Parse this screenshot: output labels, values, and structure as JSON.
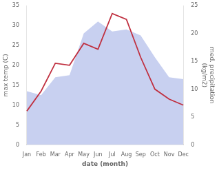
{
  "chart_data": {
    "type": "line",
    "categories": [
      "Jan",
      "Feb",
      "Mar",
      "Apr",
      "May",
      "Jun",
      "Jul",
      "Aug",
      "Sep",
      "Oct",
      "Nov",
      "Dec"
    ],
    "series": [
      {
        "type": "area",
        "color": "#c8d0f0",
        "values": [
          13.5,
          12.5,
          17.0,
          17.5,
          28.0,
          31.0,
          28.5,
          29.0,
          27.5,
          22.0,
          17.0,
          16.5
        ]
      },
      {
        "type": "line",
        "color": "#c03040",
        "values": [
          8.5,
          13.5,
          20.5,
          20.0,
          25.5,
          24.0,
          33.0,
          31.5,
          22.0,
          14.0,
          11.5,
          10.0
        ]
      }
    ],
    "xlabel": "date (month)",
    "ylabel": "max temp (C)",
    "y2label": "med. precipitation\n(kg/m2)",
    "ylim": [
      0,
      35
    ],
    "yticks": [
      0,
      5,
      10,
      15,
      20,
      25,
      30,
      35
    ],
    "y2lim": [
      0,
      25
    ],
    "y2ticks": [
      0,
      5,
      10,
      15,
      20,
      25
    ],
    "grid": false
  }
}
